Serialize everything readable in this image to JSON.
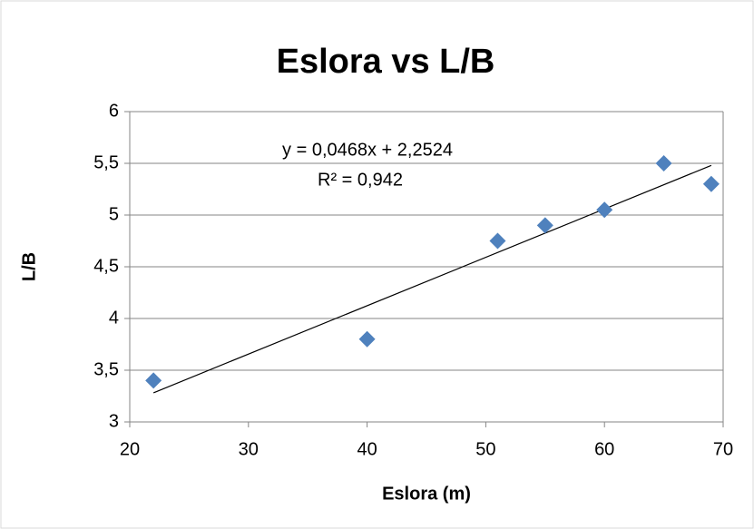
{
  "chart_data": {
    "type": "scatter",
    "title": "Eslora vs L/B",
    "x_label": "Eslora (m)",
    "y_label": "L/B",
    "series": [
      {
        "name": "L/B",
        "color": "#4f81bd",
        "x": [
          22,
          40,
          51,
          55,
          60,
          65,
          69
        ],
        "values": [
          3.4,
          3.8,
          4.75,
          4.9,
          5.05,
          5.5,
          5.3
        ]
      }
    ],
    "trendline": {
      "type": "linear",
      "equation": "y = 0,0468x + 2,2524",
      "r_squared": "R² = 0,942",
      "color": "#000000"
    },
    "xlim": [
      20,
      70
    ],
    "xticks": [
      20,
      30,
      40,
      50,
      60,
      70
    ],
    "ylim": [
      3,
      6
    ],
    "yticks": [
      3,
      {
        "value": 3.5,
        "label": "3,5"
      },
      4,
      {
        "value": 4.5,
        "label": "4,5"
      },
      5,
      {
        "value": 5.5,
        "label": "5,5"
      },
      6
    ],
    "grid": true
  }
}
